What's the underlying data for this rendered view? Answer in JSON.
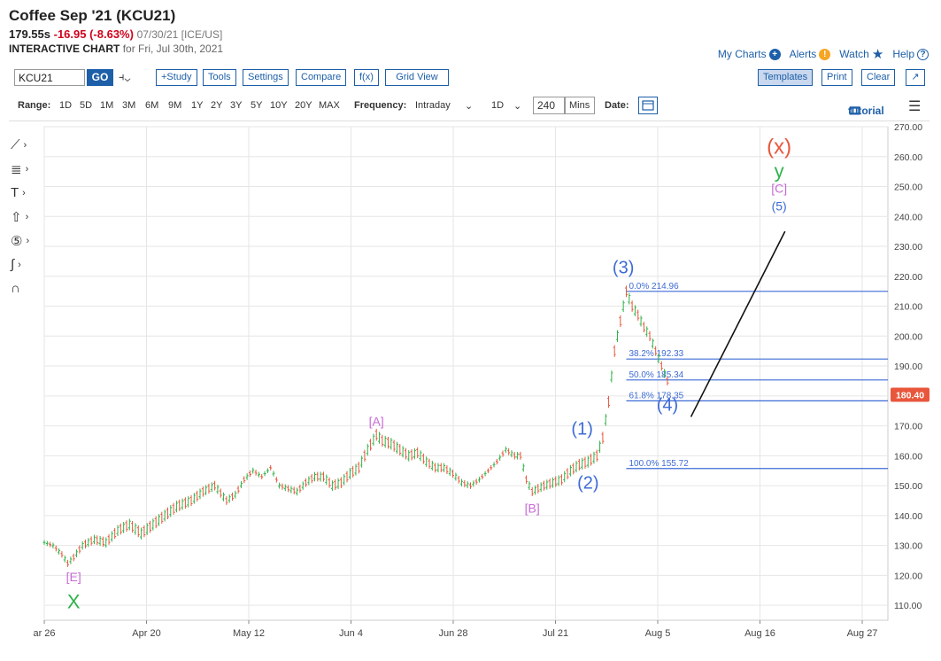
{
  "header": {
    "title": "Coffee Sep '21 (KCU21)",
    "price": "179.55s",
    "change": "-16.95 (-8.63%)",
    "date_exchange": "07/30/21 [ICE/US]",
    "chart_label": "INTERACTIVE CHART",
    "chart_for": "for Fri, Jul 30th, 2021"
  },
  "top_links": {
    "my_charts": "My Charts",
    "alerts": "Alerts",
    "watch": "Watch",
    "help": "Help"
  },
  "toolbar": {
    "symbol": "KCU21",
    "go": "GO",
    "study": "+Study",
    "tools": "Tools",
    "settings": "Settings",
    "compare": "Compare",
    "fx": "f(x)",
    "grid_view": "Grid View",
    "templates": "Templates",
    "print": "Print",
    "clear": "Clear"
  },
  "range_bar": {
    "range_label": "Range:",
    "ranges": [
      "1D",
      "5D",
      "1M",
      "3M",
      "6M",
      "9M",
      "1Y",
      "2Y",
      "3Y",
      "5Y",
      "10Y",
      "20Y",
      "MAX"
    ],
    "frequency_label": "Frequency:",
    "frequency": "Intraday",
    "period": "1D",
    "interval": "240",
    "interval_unit": "Mins",
    "date_label": "Date:",
    "tutorial": "tutorial"
  },
  "chart_data": {
    "type": "line",
    "y_ticks": [
      "270.00",
      "260.00",
      "250.00",
      "240.00",
      "230.00",
      "220.00",
      "210.00",
      "200.00",
      "190.00",
      "180.00",
      "170.00",
      "160.00",
      "150.00",
      "140.00",
      "130.00",
      "120.00",
      "110.00"
    ],
    "ylim": [
      105,
      270
    ],
    "x_tick_labels": [
      "ar 26",
      "Apr 20",
      "May 12",
      "Jun 4",
      "Jun 28",
      "Jul 21",
      "Aug 5",
      "Aug 16",
      "Aug 27"
    ],
    "last_price_label": "180.40",
    "last_price": 180.4,
    "series": [
      {
        "values": [
          [
            0,
            131
          ],
          [
            3,
            130
          ],
          [
            6,
            127
          ],
          [
            8,
            124
          ],
          [
            10,
            126
          ],
          [
            13,
            130
          ],
          [
            17,
            132
          ],
          [
            21,
            131
          ],
          [
            25,
            135
          ],
          [
            29,
            137
          ],
          [
            33,
            134
          ],
          [
            37,
            137
          ],
          [
            41,
            140
          ],
          [
            45,
            143
          ],
          [
            50,
            145
          ],
          [
            54,
            148
          ],
          [
            58,
            150
          ],
          [
            62,
            145
          ],
          [
            65,
            147
          ],
          [
            68,
            152
          ],
          [
            71,
            155
          ],
          [
            74,
            153
          ],
          [
            77,
            156
          ],
          [
            80,
            150
          ],
          [
            83,
            149
          ],
          [
            86,
            148
          ],
          [
            89,
            151
          ],
          [
            92,
            153
          ],
          [
            95,
            153
          ],
          [
            98,
            150
          ],
          [
            101,
            151
          ],
          [
            104,
            154
          ],
          [
            107,
            156
          ],
          [
            110,
            162
          ],
          [
            113,
            167
          ],
          [
            115,
            165
          ],
          [
            118,
            164
          ],
          [
            121,
            162
          ],
          [
            124,
            160
          ],
          [
            127,
            161
          ],
          [
            130,
            158
          ],
          [
            133,
            156
          ],
          [
            136,
            156
          ],
          [
            139,
            154
          ],
          [
            142,
            151
          ],
          [
            145,
            150
          ],
          [
            148,
            152
          ],
          [
            151,
            155
          ],
          [
            154,
            158
          ],
          [
            157,
            162
          ],
          [
            160,
            160
          ],
          [
            162,
            160
          ],
          [
            164,
            152
          ],
          [
            166,
            148
          ],
          [
            168,
            149
          ],
          [
            170,
            150
          ],
          [
            173,
            151
          ],
          [
            176,
            152
          ],
          [
            179,
            155
          ],
          [
            182,
            157
          ],
          [
            185,
            158
          ],
          [
            188,
            160
          ],
          [
            190,
            166
          ],
          [
            192,
            178
          ],
          [
            194,
            195
          ],
          [
            196,
            205
          ],
          [
            197,
            210
          ],
          [
            198,
            214.96
          ],
          [
            200,
            210
          ],
          [
            202,
            207
          ],
          [
            204,
            203
          ],
          [
            206,
            200
          ],
          [
            208,
            195
          ],
          [
            210,
            190
          ],
          [
            212,
            185
          ],
          [
            213,
            180.4
          ]
        ]
      }
    ],
    "fib_levels": [
      {
        "label": "0.0% 214.96",
        "value": 214.96
      },
      {
        "label": "38.2% 192.33",
        "value": 192.33
      },
      {
        "label": "50.0% 185.34",
        "value": 185.34
      },
      {
        "label": "61.8% 178.35",
        "value": 178.35
      },
      {
        "label": "100.0% 155.72",
        "value": 155.72
      }
    ],
    "wave_labels": [
      {
        "text": "[E]",
        "x": 10,
        "y": 118,
        "color": "#c76bd4"
      },
      {
        "text": "X",
        "x": 10,
        "y": 109,
        "color": "#2fb34a"
      },
      {
        "text": "[A]",
        "x": 113,
        "y": 170,
        "color": "#c76bd4"
      },
      {
        "text": "[B]",
        "x": 166,
        "y": 141,
        "color": "#c76bd4"
      },
      {
        "text": "(1)",
        "x": 183,
        "y": 167,
        "color": "#3d6bd6"
      },
      {
        "text": "(2)",
        "x": 185,
        "y": 149,
        "color": "#3d6bd6"
      },
      {
        "text": "(3)",
        "x": 197,
        "y": 221,
        "color": "#3d6bd6"
      },
      {
        "text": "(4)",
        "x": 212,
        "y": 175,
        "color": "#3d6bd6"
      },
      {
        "text": "(x)",
        "x": 250,
        "y": 261,
        "color": "#e8573c"
      },
      {
        "text": "y",
        "x": 250,
        "y": 253,
        "color": "#2fb34a"
      },
      {
        "text": "[C]",
        "x": 250,
        "y": 248,
        "color": "#c76bd4"
      },
      {
        "text": "(5)",
        "x": 250,
        "y": 242,
        "color": "#3d6bd6"
      }
    ],
    "projection_line": [
      [
        220,
        173
      ],
      [
        252,
        235
      ]
    ],
    "colors": {
      "up": "#2fb34a",
      "down": "#e8573c",
      "fib": "#3d6bd6",
      "last": "#e8573c"
    }
  }
}
